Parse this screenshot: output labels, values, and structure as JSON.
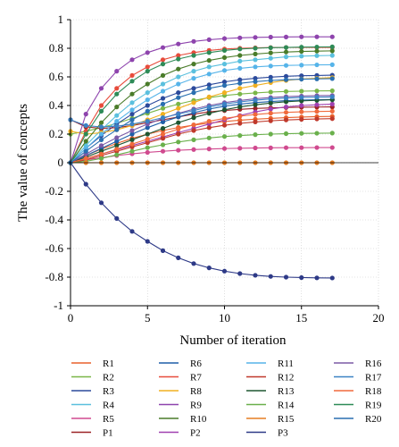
{
  "chart_data": {
    "type": "line",
    "xlabel": "Number of iteration",
    "ylabel": "The value of concepts",
    "xlim": [
      0,
      20
    ],
    "ylim": [
      -1,
      1
    ],
    "x_ticks": [
      "0",
      "5",
      "10",
      "15",
      "20"
    ],
    "y_ticks": [
      "1",
      "0.8",
      "0.6",
      "0.4",
      "0.2",
      "0",
      "-0.2",
      "-0.4",
      "-0.6",
      "-0.8",
      "-1"
    ],
    "grid": true,
    "markers": true,
    "legend_position": "bottom",
    "x": [
      0,
      1,
      2,
      3,
      4,
      5,
      6,
      7,
      8,
      9,
      10,
      11,
      12,
      13,
      14,
      15,
      16,
      17
    ],
    "series": [
      {
        "name": "R1",
        "color": "#e8602c",
        "values": [
          0,
          0.05,
          0.095,
          0.135,
          0.17,
          0.2,
          0.225,
          0.246,
          0.263,
          0.277,
          0.288,
          0.297,
          0.304,
          0.31,
          0.315,
          0.319,
          0.322,
          0.324
        ]
      },
      {
        "name": "R2",
        "color": "#7ab648",
        "values": [
          0.2,
          0.22,
          0.245,
          0.275,
          0.31,
          0.345,
          0.38,
          0.41,
          0.435,
          0.455,
          0.47,
          0.48,
          0.488,
          0.494,
          0.498,
          0.5,
          0.502,
          0.503
        ]
      },
      {
        "name": "R3",
        "color": "#2c4a9c",
        "values": [
          0,
          0.1,
          0.19,
          0.27,
          0.34,
          0.4,
          0.45,
          0.49,
          0.52,
          0.545,
          0.565,
          0.58,
          0.59,
          0.598,
          0.604,
          0.608,
          0.61,
          0.612
        ]
      },
      {
        "name": "R4",
        "color": "#5bc0de",
        "values": [
          0,
          0.12,
          0.23,
          0.33,
          0.42,
          0.49,
          0.55,
          0.6,
          0.64,
          0.67,
          0.69,
          0.71,
          0.72,
          0.73,
          0.74,
          0.745,
          0.748,
          0.75
        ]
      },
      {
        "name": "R5",
        "color": "#d04a8f",
        "values": [
          0,
          0.02,
          0.035,
          0.05,
          0.062,
          0.072,
          0.08,
          0.087,
          0.092,
          0.096,
          0.099,
          0.101,
          0.103,
          0.104,
          0.105,
          0.105,
          0.106,
          0.106
        ]
      },
      {
        "name": "P1",
        "color": "#9b2226",
        "values": [
          0.3,
          0.25,
          0.24,
          0.245,
          0.26,
          0.28,
          0.3,
          0.32,
          0.34,
          0.355,
          0.365,
          0.373,
          0.379,
          0.383,
          0.386,
          0.388,
          0.389,
          0.39
        ]
      },
      {
        "name": "R6",
        "color": "#1f5fa8",
        "values": [
          0,
          0.05,
          0.1,
          0.15,
          0.2,
          0.245,
          0.285,
          0.32,
          0.35,
          0.375,
          0.395,
          0.41,
          0.42,
          0.428,
          0.434,
          0.438,
          0.44,
          0.442
        ]
      },
      {
        "name": "R7",
        "color": "#e74c3c",
        "values": [
          0,
          0.22,
          0.4,
          0.52,
          0.61,
          0.67,
          0.72,
          0.75,
          0.77,
          0.785,
          0.795,
          0.8,
          0.803,
          0.805,
          0.806,
          0.806,
          0.806,
          0.806
        ]
      },
      {
        "name": "R8",
        "color": "#f0b020",
        "values": [
          0.22,
          0.2,
          0.21,
          0.23,
          0.26,
          0.3,
          0.34,
          0.38,
          0.42,
          0.46,
          0.49,
          0.52,
          0.54,
          0.56,
          0.575,
          0.585,
          0.59,
          0.595
        ]
      },
      {
        "name": "R9",
        "color": "#8e44ad",
        "values": [
          0,
          0.34,
          0.52,
          0.64,
          0.72,
          0.77,
          0.805,
          0.83,
          0.848,
          0.86,
          0.868,
          0.873,
          0.876,
          0.878,
          0.879,
          0.88,
          0.88,
          0.88
        ]
      },
      {
        "name": "R10",
        "color": "#4a7c2a",
        "values": [
          0,
          0.15,
          0.28,
          0.39,
          0.48,
          0.55,
          0.61,
          0.655,
          0.69,
          0.715,
          0.735,
          0.75,
          0.76,
          0.768,
          0.774,
          0.778,
          0.78,
          0.782
        ]
      },
      {
        "name": "P2",
        "color": "#a040b0",
        "values": [
          0,
          0.03,
          0.06,
          0.09,
          0.12,
          0.15,
          0.18,
          0.21,
          0.24,
          0.27,
          0.3,
          0.33,
          0.355,
          0.375,
          0.39,
          0.4,
          0.405,
          0.41
        ]
      },
      {
        "name": "R11",
        "color": "#56b4e9",
        "values": [
          0,
          0.1,
          0.2,
          0.29,
          0.37,
          0.44,
          0.5,
          0.55,
          0.59,
          0.62,
          0.645,
          0.66,
          0.67,
          0.676,
          0.68,
          0.682,
          0.684,
          0.685
        ]
      },
      {
        "name": "R12",
        "color": "#c0392b",
        "values": [
          0,
          0.02,
          0.05,
          0.08,
          0.11,
          0.14,
          0.17,
          0.2,
          0.225,
          0.245,
          0.262,
          0.275,
          0.285,
          0.293,
          0.299,
          0.303,
          0.306,
          0.308
        ]
      },
      {
        "name": "R13",
        "color": "#1e5631",
        "values": [
          0,
          0.04,
          0.08,
          0.12,
          0.16,
          0.2,
          0.24,
          0.28,
          0.315,
          0.345,
          0.37,
          0.39,
          0.405,
          0.417,
          0.426,
          0.432,
          0.436,
          0.44
        ]
      },
      {
        "name": "R14",
        "color": "#6ab04c",
        "values": [
          0,
          0.01,
          0.03,
          0.055,
          0.08,
          0.105,
          0.125,
          0.145,
          0.16,
          0.173,
          0.183,
          0.19,
          0.196,
          0.2,
          0.203,
          0.205,
          0.206,
          0.207
        ]
      },
      {
        "name": "R15",
        "color": "#e67e22",
        "values": [
          0,
          0,
          0,
          0,
          0,
          0,
          0,
          0,
          0,
          0,
          0,
          0,
          0,
          0,
          0,
          0,
          0,
          0
        ]
      },
      {
        "name": "P3",
        "color": "#2e3a87",
        "values": [
          0,
          -0.15,
          -0.28,
          -0.39,
          -0.48,
          -0.55,
          -0.615,
          -0.665,
          -0.705,
          -0.735,
          -0.758,
          -0.775,
          -0.787,
          -0.795,
          -0.8,
          -0.803,
          -0.805,
          -0.806
        ]
      },
      {
        "name": "R16",
        "color": "#7b5aa6",
        "values": [
          0,
          0.06,
          0.12,
          0.175,
          0.225,
          0.27,
          0.31,
          0.345,
          0.375,
          0.4,
          0.42,
          0.435,
          0.447,
          0.456,
          0.462,
          0.466,
          0.469,
          0.47
        ]
      },
      {
        "name": "R17",
        "color": "#3b82c4",
        "values": [
          0.3,
          0.26,
          0.25,
          0.255,
          0.27,
          0.29,
          0.315,
          0.34,
          0.365,
          0.39,
          0.41,
          0.425,
          0.437,
          0.446,
          0.452,
          0.456,
          0.458,
          0.46
        ]
      },
      {
        "name": "R18",
        "color": "#f06a3c",
        "values": [
          0,
          0.03,
          0.06,
          0.095,
          0.13,
          0.165,
          0.2,
          0.235,
          0.265,
          0.29,
          0.31,
          0.325,
          0.337,
          0.346,
          0.352,
          0.356,
          0.358,
          0.36
        ]
      },
      {
        "name": "R19",
        "color": "#2e8b57",
        "values": [
          0,
          0.2,
          0.36,
          0.48,
          0.57,
          0.64,
          0.69,
          0.725,
          0.75,
          0.77,
          0.785,
          0.795,
          0.8,
          0.804,
          0.806,
          0.808,
          0.809,
          0.81
        ]
      },
      {
        "name": "R20",
        "color": "#2a6fb0",
        "values": [
          0,
          0.08,
          0.16,
          0.23,
          0.3,
          0.36,
          0.41,
          0.455,
          0.49,
          0.52,
          0.54,
          0.555,
          0.567,
          0.575,
          0.58,
          0.584,
          0.586,
          0.588
        ]
      }
    ]
  }
}
